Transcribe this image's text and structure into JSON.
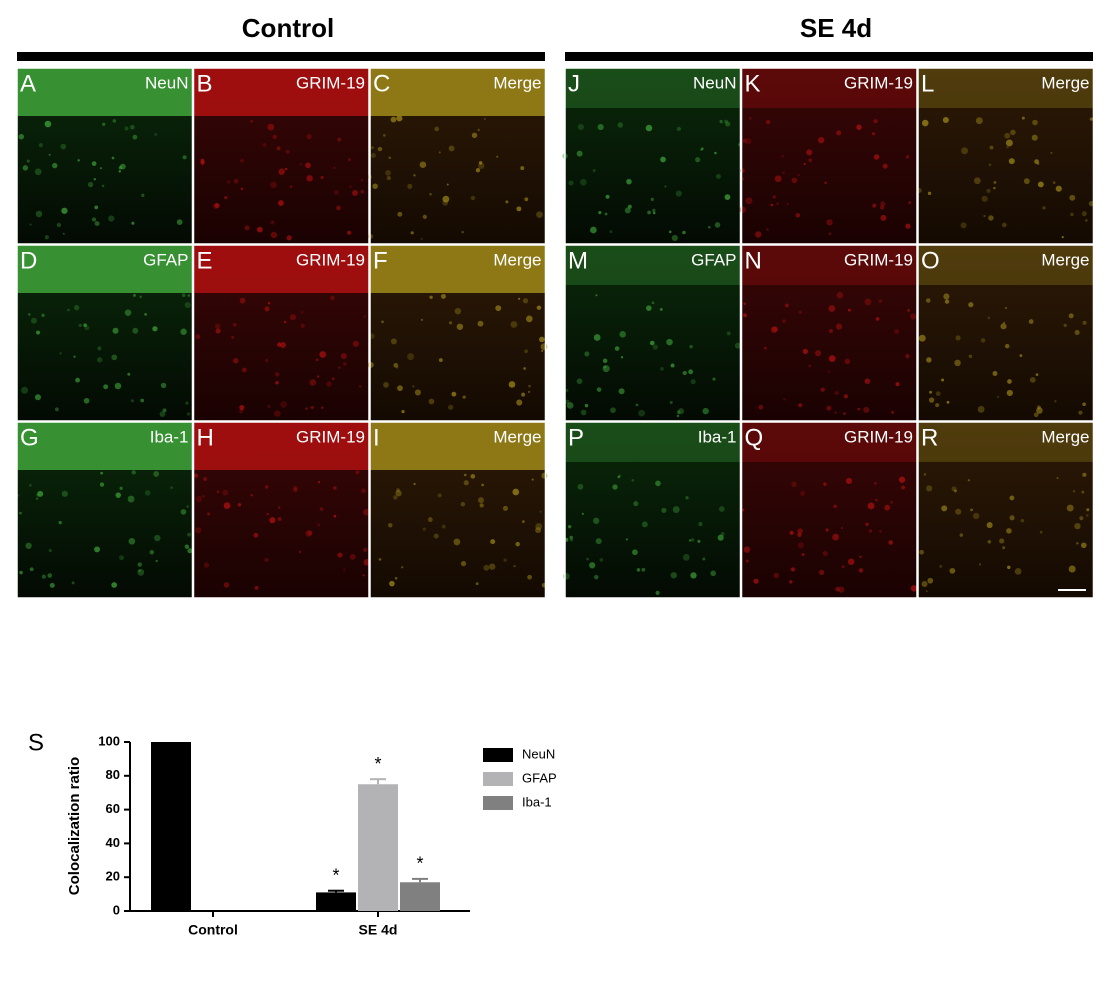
{
  "groups": [
    {
      "title": "Control"
    },
    {
      "title": "SE 4d"
    }
  ],
  "panels": [
    {
      "letter": "A",
      "label": "NeuN"
    },
    {
      "letter": "B",
      "label": "GRIM-19"
    },
    {
      "letter": "C",
      "label": "Merge"
    },
    {
      "letter": "D",
      "label": "GFAP"
    },
    {
      "letter": "E",
      "label": "GRIM-19"
    },
    {
      "letter": "F",
      "label": "Merge"
    },
    {
      "letter": "G",
      "label": "Iba-1"
    },
    {
      "letter": "H",
      "label": "GRIM-19"
    },
    {
      "letter": "I",
      "label": "Merge"
    },
    {
      "letter": "J",
      "label": "NeuN"
    },
    {
      "letter": "K",
      "label": "GRIM-19"
    },
    {
      "letter": "L",
      "label": "Merge"
    },
    {
      "letter": "M",
      "label": "GFAP"
    },
    {
      "letter": "N",
      "label": "GRIM-19"
    },
    {
      "letter": "O",
      "label": "Merge"
    },
    {
      "letter": "P",
      "label": "Iba-1"
    },
    {
      "letter": "Q",
      "label": "GRIM-19"
    },
    {
      "letter": "R",
      "label": "Merge"
    }
  ],
  "chart_letter": "S",
  "chart_data": {
    "type": "bar",
    "y_label": "Colocalization ratio",
    "categories": [
      "Control",
      "SE 4d"
    ],
    "series": [
      {
        "name": "NeuN",
        "color": "#000000",
        "values": [
          100,
          11
        ],
        "errors": [
          0,
          1
        ],
        "markers": [
          null,
          "*"
        ]
      },
      {
        "name": "GFAP",
        "color": "#b3b3b5",
        "values": [
          0,
          75
        ],
        "errors": [
          0,
          3
        ],
        "markers": [
          null,
          "*"
        ]
      },
      {
        "name": "Iba-1",
        "color": "#808080",
        "values": [
          0,
          17
        ],
        "errors": [
          0,
          2
        ],
        "markers": [
          null,
          "*"
        ]
      }
    ],
    "ylim": [
      0,
      100
    ],
    "yticks": [
      0,
      20,
      40,
      60,
      80,
      100
    ]
  }
}
